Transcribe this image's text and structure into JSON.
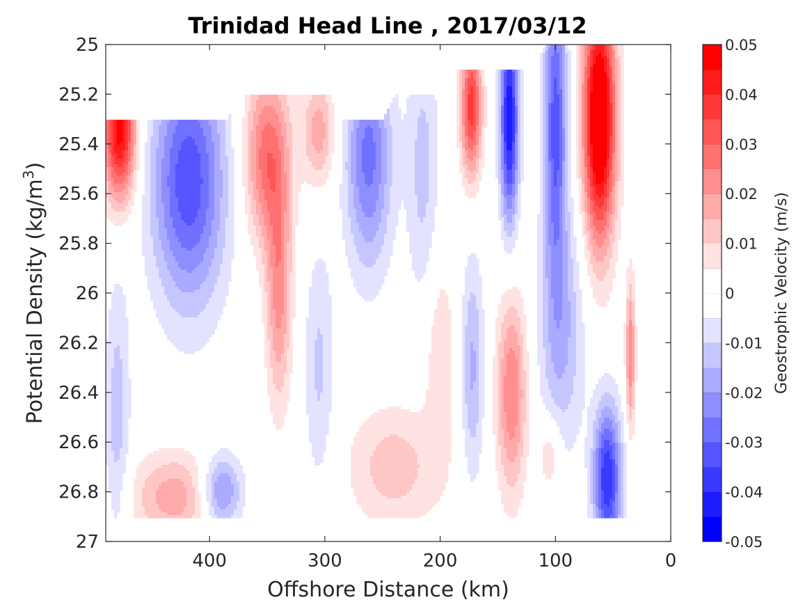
{
  "chart_data": {
    "type": "heatmap",
    "subtype": "filled-contour",
    "title": "Trinidad Head Line , 2017/03/12",
    "xlabel": "Offshore Distance (km)",
    "ylabel_prefix": "Potential Density (kg/m",
    "ylabel_sup": "3",
    "ylabel_suffix": ")",
    "colorbar_label": "Geostrophic Velocity (m/s)",
    "xlim": [
      490,
      0
    ],
    "x_reversed": true,
    "ylim": [
      25,
      27
    ],
    "y_reversed": true,
    "x_ticks": [
      400,
      300,
      200,
      100,
      0
    ],
    "x_tick_labels": [
      "400",
      "300",
      "200",
      "100",
      "0"
    ],
    "y_ticks": [
      25,
      25.2,
      25.4,
      25.6,
      25.8,
      26,
      26.2,
      26.4,
      26.6,
      26.8,
      27
    ],
    "y_tick_labels": [
      "25",
      "25.2",
      "25.4",
      "25.6",
      "25.8",
      "26",
      "26.2",
      "26.4",
      "26.6",
      "26.8",
      "27"
    ],
    "clim": [
      -0.05,
      0.05
    ],
    "color_levels": [
      -0.05,
      -0.045,
      -0.04,
      -0.035,
      -0.03,
      -0.025,
      -0.02,
      -0.015,
      -0.01,
      -0.005,
      0,
      0.005,
      0.01,
      0.015,
      0.02,
      0.025,
      0.03,
      0.035,
      0.04,
      0.045,
      0.05
    ],
    "colorbar_ticks": [
      0.05,
      0.04,
      0.03,
      0.02,
      0.01,
      0,
      -0.01,
      -0.02,
      -0.03,
      -0.04,
      -0.05
    ],
    "colorbar_tick_labels": [
      "0.05",
      "0.04",
      "0.03",
      "0.02",
      "0.01",
      "0",
      "-0.01",
      "-0.02",
      "-0.03",
      "-0.04",
      "-0.05"
    ],
    "colormap": "blue-white-red",
    "color_negative": "#0000ff",
    "color_zero": "#ffffff",
    "color_positive": "#ff0000",
    "grid": false,
    "data_top_boundary": [
      [
        490,
        25.3
      ],
      [
        385,
        25.3
      ],
      [
        375,
        25.2
      ],
      [
        325,
        25.2
      ],
      [
        318,
        25.2
      ],
      [
        290,
        25.2
      ],
      [
        290,
        25.3
      ],
      [
        250,
        25.3
      ],
      [
        238,
        25.2
      ],
      [
        190,
        25.2
      ],
      [
        185,
        25.1
      ],
      [
        120,
        25.1
      ],
      [
        108,
        25.0
      ],
      [
        0,
        25.0
      ]
    ],
    "data_bottom": 26.9,
    "features": [
      {
        "x": 478,
        "y": 25.35,
        "sx": 14,
        "sy": 0.28,
        "v": 0.048
      },
      {
        "x": 418,
        "y": 25.55,
        "sx": 32,
        "sy": 0.5,
        "v": -0.034
      },
      {
        "x": 350,
        "y": 25.45,
        "sx": 20,
        "sy": 0.35,
        "v": 0.028
      },
      {
        "x": 340,
        "y": 26.0,
        "sx": 11,
        "sy": 0.45,
        "v": 0.022
      },
      {
        "x": 305,
        "y": 25.35,
        "sx": 14,
        "sy": 0.22,
        "v": 0.018
      },
      {
        "x": 262,
        "y": 25.45,
        "sx": 20,
        "sy": 0.45,
        "v": -0.027
      },
      {
        "x": 215,
        "y": 25.5,
        "sx": 14,
        "sy": 0.55,
        "v": -0.012
      },
      {
        "x": 173,
        "y": 25.25,
        "sx": 9,
        "sy": 0.28,
        "v": 0.038
      },
      {
        "x": 140,
        "y": 25.3,
        "sx": 8,
        "sy": 0.42,
        "v": -0.045
      },
      {
        "x": 100,
        "y": 25.3,
        "sx": 10,
        "sy": 0.6,
        "v": -0.032
      },
      {
        "x": 62,
        "y": 25.3,
        "sx": 14,
        "sy": 0.5,
        "v": 0.06
      },
      {
        "x": 95,
        "y": 26.15,
        "sx": 20,
        "sy": 0.5,
        "v": -0.016
      },
      {
        "x": 480,
        "y": 26.5,
        "sx": 11,
        "sy": 0.55,
        "v": -0.013
      },
      {
        "x": 305,
        "y": 26.3,
        "sx": 13,
        "sy": 0.5,
        "v": -0.011
      },
      {
        "x": 200,
        "y": 26.25,
        "sx": 13,
        "sy": 0.4,
        "v": 0.01
      },
      {
        "x": 172,
        "y": 26.3,
        "sx": 10,
        "sy": 0.45,
        "v": -0.016
      },
      {
        "x": 138,
        "y": 26.4,
        "sx": 13,
        "sy": 0.4,
        "v": 0.025
      },
      {
        "x": 105,
        "y": 26.65,
        "sx": 10,
        "sy": 0.15,
        "v": 0.012
      },
      {
        "x": 55,
        "y": 26.75,
        "sx": 12,
        "sy": 0.3,
        "v": -0.04
      },
      {
        "x": 430,
        "y": 26.82,
        "sx": 38,
        "sy": 0.18,
        "v": 0.018
      },
      {
        "x": 390,
        "y": 26.8,
        "sx": 18,
        "sy": 0.15,
        "v": -0.025
      },
      {
        "x": 240,
        "y": 26.7,
        "sx": 40,
        "sy": 0.25,
        "v": 0.013
      },
      {
        "x": 35,
        "y": 26.25,
        "sx": 4,
        "sy": 0.3,
        "v": 0.025
      }
    ]
  }
}
